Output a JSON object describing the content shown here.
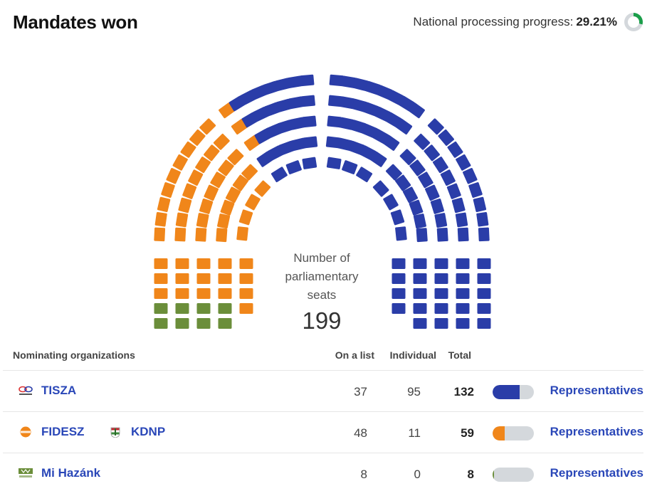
{
  "header": {
    "title": "Mandates won",
    "progress_label": "National processing progress:",
    "progress_value": "29.21%",
    "progress_fraction": 0.2921
  },
  "colors": {
    "tisza": "#2a3da8",
    "fidesz": "#f0861a",
    "mihazank": "#6b8e3a",
    "link": "#2a47b8",
    "bar_track": "#d4d8dc",
    "progress_ring": "#1b9e4a"
  },
  "seat_chart": {
    "center_label": "Number of parliamentary seats",
    "total_seats": "199",
    "seats_by_party": {
      "mihazank": 8,
      "fidesz": 59,
      "tisza": 132
    }
  },
  "table": {
    "headers": {
      "organization": "Nominating organizations",
      "on_list": "On a list",
      "individual": "Individual",
      "total": "Total"
    },
    "rows": [
      {
        "orgs": [
          {
            "name": "TISZA",
            "icon": "tisza-logo-icon"
          }
        ],
        "on_list": "37",
        "individual": "95",
        "total": "132",
        "share": 0.663,
        "color": "#2a3da8",
        "link": "Representatives"
      },
      {
        "orgs": [
          {
            "name": "FIDESZ",
            "icon": "fidesz-logo-icon"
          },
          {
            "name": "KDNP",
            "icon": "kdnp-logo-icon"
          }
        ],
        "on_list": "48",
        "individual": "11",
        "total": "59",
        "share": 0.296,
        "color": "#f0861a",
        "link": "Representatives"
      },
      {
        "orgs": [
          {
            "name": "Mi Hazánk",
            "icon": "mihazank-logo-icon"
          }
        ],
        "on_list": "8",
        "individual": "0",
        "total": "8",
        "share": 0.04,
        "color": "#6b8e3a",
        "link": "Representatives"
      }
    ]
  }
}
